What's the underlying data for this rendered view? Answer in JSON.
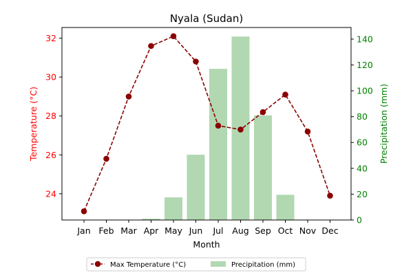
{
  "chart_data": {
    "type": "bar+line",
    "title": "Nyala (Sudan)",
    "xlabel": "Month",
    "categories": [
      "Jan",
      "Feb",
      "Mar",
      "Apr",
      "May",
      "Jun",
      "Jul",
      "Aug",
      "Sep",
      "Oct",
      "Nov",
      "Dec"
    ],
    "y_left": {
      "label": "Temperature (°C)",
      "range": [
        22.65,
        32.55
      ],
      "ticks": [
        24,
        26,
        28,
        30,
        32
      ],
      "color": "#ff0000"
    },
    "y_right": {
      "label": "Precipitation (mm)",
      "range": [
        0,
        149
      ],
      "ticks": [
        0,
        20,
        40,
        60,
        80,
        100,
        120,
        140
      ],
      "color": "#008000"
    },
    "series": [
      {
        "name": "Max Temperature (°C)",
        "type": "line",
        "axis": "left",
        "color": "#8b0000",
        "line_style": "dashed",
        "marker": "circle",
        "values": [
          23.1,
          25.8,
          29.0,
          31.6,
          32.1,
          30.8,
          27.5,
          27.3,
          28.2,
          29.1,
          27.2,
          23.9
        ]
      },
      {
        "name": "Precipitation (mm)",
        "type": "bar",
        "axis": "right",
        "color": "#b1d8b1",
        "values": [
          0,
          0,
          0,
          1,
          17.5,
          50.5,
          117,
          142,
          81,
          19.5,
          0,
          0
        ]
      }
    ],
    "legend_position": "bottom-center",
    "grid": false
  }
}
